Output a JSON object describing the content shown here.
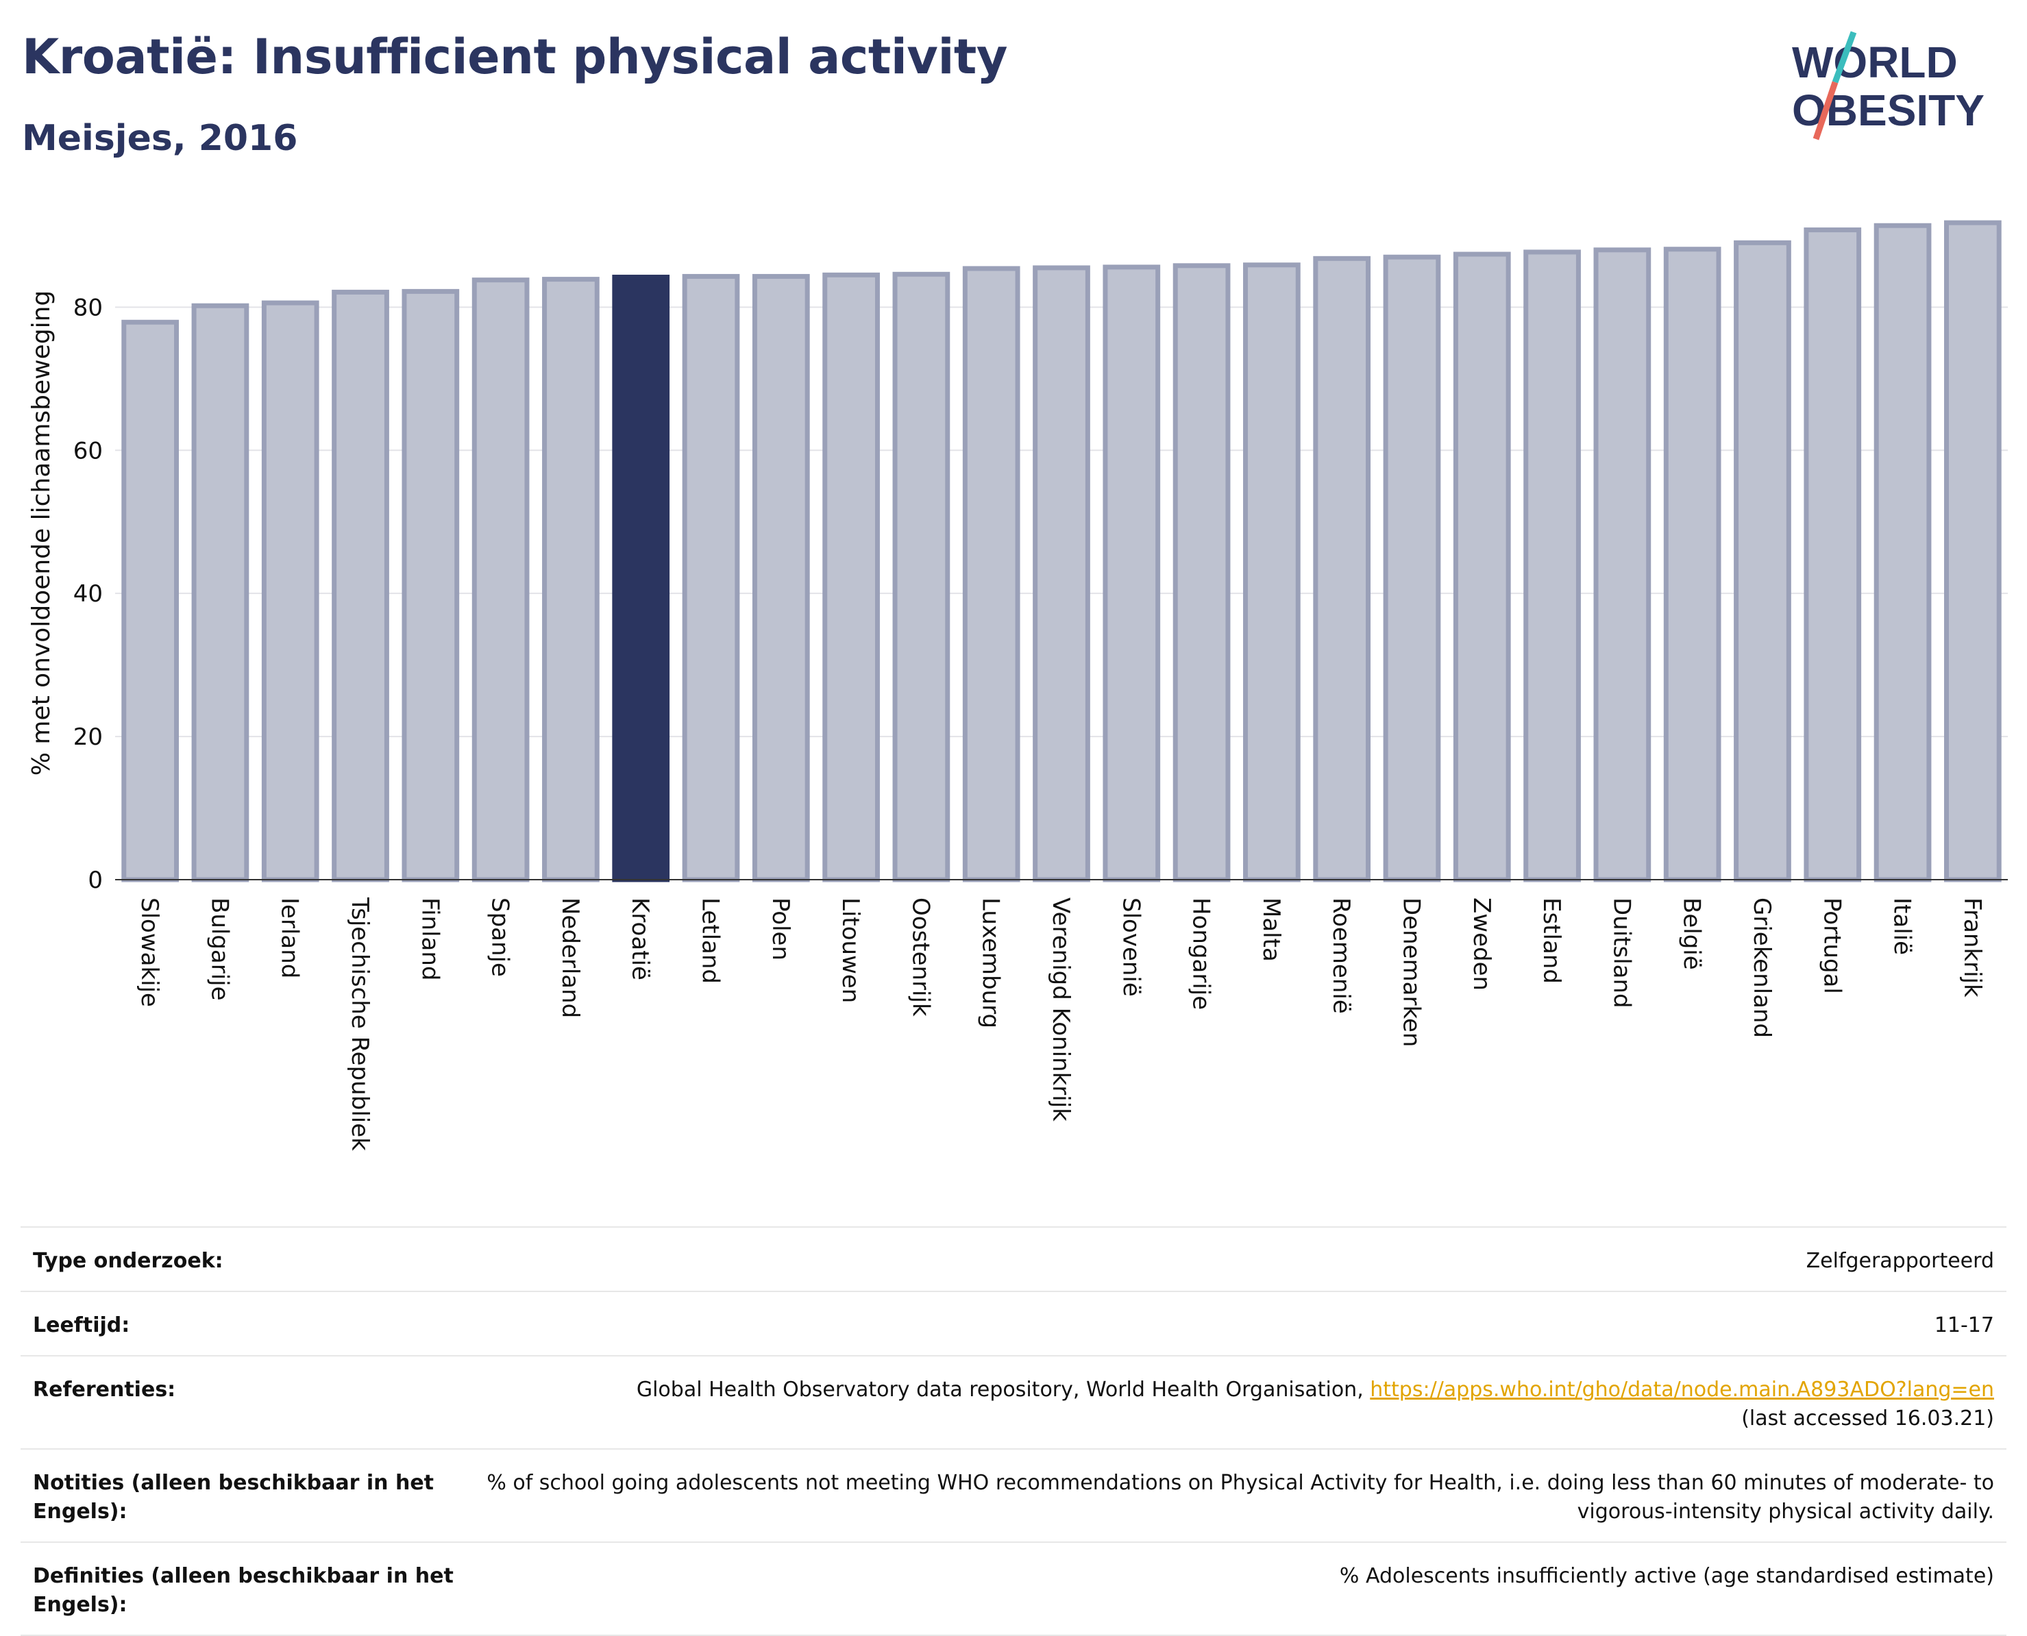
{
  "header": {
    "title": "Kroatië: Insufficient physical activity",
    "subtitle": "Meisjes, 2016"
  },
  "logo": {
    "line1": "WORLD",
    "line2": "OBESITY"
  },
  "colors": {
    "bar": "#bec2d0",
    "bar_border": "#9aa0b8",
    "highlight": "#2b3560",
    "title": "#2b3560",
    "link": "#e2a400"
  },
  "chart_data": {
    "type": "bar",
    "ylabel": "% met onvoldoende lichaamsbeweging",
    "ylim": [
      0,
      92
    ],
    "yticks": [
      0,
      20,
      40,
      60,
      80
    ],
    "grid": true,
    "highlight": "Kroatië",
    "categories": [
      "Slowakije",
      "Bulgarije",
      "Ierland",
      "Tsjechische Republiek",
      "Finland",
      "Spanje",
      "Nederland",
      "Kroatië",
      "Letland",
      "Polen",
      "Litouwen",
      "Oostenrijk",
      "Luxemburg",
      "Verenigd Koninkrijk",
      "Slovenië",
      "Hongarije",
      "Malta",
      "Roemenië",
      "Denemarken",
      "Zweden",
      "Estland",
      "Duitsland",
      "België",
      "Griekenland",
      "Portugal",
      "Italië",
      "Frankrijk"
    ],
    "values": [
      77.9,
      80.2,
      80.6,
      82.1,
      82.2,
      83.8,
      83.9,
      84.2,
      84.3,
      84.3,
      84.5,
      84.6,
      85.4,
      85.5,
      85.6,
      85.8,
      85.9,
      86.8,
      87.0,
      87.4,
      87.7,
      88.0,
      88.1,
      89.0,
      90.8,
      91.4,
      91.8
    ]
  },
  "info": {
    "rows": [
      {
        "key": "Type onderzoek:",
        "value": "Zelfgerapporteerd"
      },
      {
        "key": "Leeftijd:",
        "value": "11-17"
      },
      {
        "key": "Referenties:",
        "value": "Global Health Observatory data repository, World Health Organisation, ",
        "link": "https://apps.who.int/gho/data/node.main.A893ADO?lang=en",
        "extra": "(last accessed 16.03.21)"
      },
      {
        "key": "Notities (alleen beschikbaar in het Engels):",
        "value": "% of school going adolescents not meeting WHO recommendations on Physical Activity for Health, i.e. doing less than 60 minutes of moderate- to vigorous-intensity physical activity daily."
      },
      {
        "key": "Definities (alleen beschikbaar in het Engels):",
        "value": "% Adolescents insufficiently active (age standardised estimate)"
      }
    ]
  }
}
